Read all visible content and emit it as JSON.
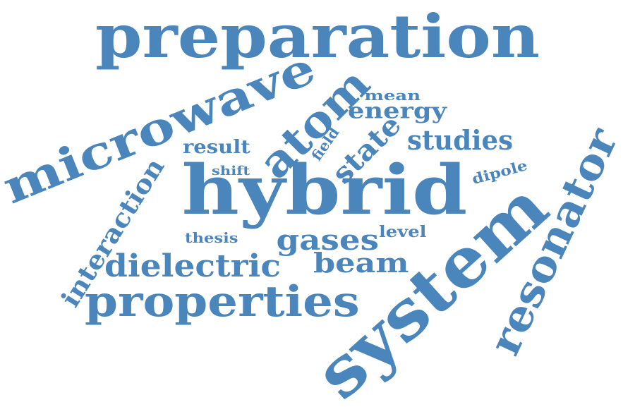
{
  "word_cloud": {
    "color": "#4a86bc",
    "words": {
      "preparation": "preparation",
      "microwave": "microwave",
      "atom": "atom",
      "mean": "mean",
      "energy": "energy",
      "field": "field",
      "state": "state",
      "studies": "studies",
      "result": "result",
      "shift": "shift",
      "hybrid": "hybrid",
      "dipole": "dipole",
      "resonator": "resonator",
      "interaction": "interaction",
      "thesis": "thesis",
      "gases": "gases",
      "level": "level",
      "dielectric": "dielectric",
      "beam": "beam",
      "properties": "properties",
      "system": "system"
    }
  }
}
